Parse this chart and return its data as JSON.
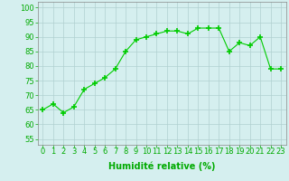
{
  "x": [
    0,
    1,
    2,
    3,
    4,
    5,
    6,
    7,
    8,
    9,
    10,
    11,
    12,
    13,
    14,
    15,
    16,
    17,
    18,
    19,
    20,
    21,
    22,
    23
  ],
  "y": [
    65,
    67,
    64,
    66,
    72,
    74,
    76,
    79,
    85,
    89,
    90,
    91,
    92,
    92,
    91,
    93,
    93,
    93,
    85,
    88,
    87,
    90,
    79,
    79
  ],
  "line_color": "#00cc00",
  "marker": "+",
  "marker_size": 4,
  "background_color": "#d5efef",
  "grid_color": "#b0d0d0",
  "xlabel": "Humidité relative (%)",
  "xlabel_color": "#00aa00",
  "ylabel_ticks": [
    55,
    60,
    65,
    70,
    75,
    80,
    85,
    90,
    95,
    100
  ],
  "xlim": [
    -0.5,
    23.5
  ],
  "ylim": [
    53,
    102
  ],
  "tick_color": "#00aa00",
  "label_fontsize": 7,
  "tick_fontsize": 6,
  "spine_color": "#888888"
}
